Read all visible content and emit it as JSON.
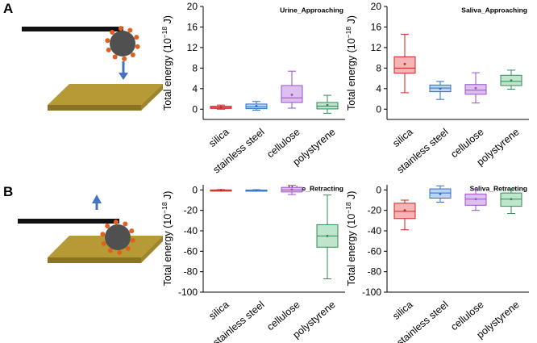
{
  "panel_labels": [
    "A",
    "B"
  ],
  "ylabel_main": "Total energy (10",
  "ylabel_exp": "−18",
  "ylabel_unit": "J)",
  "categories": [
    "silica",
    "stainless steel",
    "cellulose",
    "polystyrene"
  ],
  "colors": {
    "silica": {
      "stroke": "#cc2222",
      "fill": "#f5b5b5"
    },
    "stainless steel": {
      "stroke": "#2f6fc9",
      "fill": "#bcd4f2"
    },
    "cellulose": {
      "stroke": "#9b4fc9",
      "fill": "#dcc0f0"
    },
    "polystyrene": {
      "stroke": "#2e8b57",
      "fill": "#bfe6cc"
    },
    "cantilever": "#111111",
    "particle": "#505050",
    "bacteria": "#e06020",
    "substrate": "#b59a36",
    "arrow": "#4472c4"
  },
  "chart_data": [
    {
      "type": "box",
      "title": "Urine_Approaching",
      "ylabel": "Total energy (10−18 J)",
      "ylim": [
        -2,
        20
      ],
      "yticks": [
        0,
        4,
        8,
        12,
        16,
        20
      ],
      "categories": [
        "silica",
        "stainless steel",
        "cellulose",
        "polystyrene"
      ],
      "boxes": [
        {
          "min": 0.0,
          "q1": 0.15,
          "median": 0.35,
          "q3": 0.55,
          "max": 0.8,
          "mean": 0.4
        },
        {
          "min": -0.2,
          "q1": 0.1,
          "median": 0.45,
          "q3": 1.0,
          "max": 1.5,
          "mean": 0.6
        },
        {
          "min": 0.2,
          "q1": 1.3,
          "median": 2.2,
          "q3": 4.6,
          "max": 7.4,
          "mean": 2.8
        },
        {
          "min": -0.8,
          "q1": 0.05,
          "median": 0.6,
          "q3": 1.3,
          "max": 2.7,
          "mean": 0.8
        }
      ]
    },
    {
      "type": "box",
      "title": "Saliva_Approaching",
      "ylabel": "Total energy (10−18 J)",
      "ylim": [
        -2,
        20
      ],
      "yticks": [
        0,
        4,
        8,
        12,
        16,
        20
      ],
      "categories": [
        "silica",
        "stainless steel",
        "cellulose",
        "polystyrene"
      ],
      "boxes": [
        {
          "min": 3.2,
          "q1": 7.0,
          "median": 8.0,
          "q3": 10.2,
          "max": 14.6,
          "mean": 8.8
        },
        {
          "min": 1.9,
          "q1": 3.4,
          "median": 4.1,
          "q3": 4.7,
          "max": 5.4,
          "mean": 4.0
        },
        {
          "min": 1.2,
          "q1": 2.9,
          "median": 3.7,
          "q3": 4.8,
          "max": 7.1,
          "mean": 4.1
        },
        {
          "min": 3.9,
          "q1": 4.6,
          "median": 5.4,
          "q3": 6.6,
          "max": 7.6,
          "mean": 5.6
        }
      ]
    },
    {
      "type": "box",
      "title": "Urine_Retracting",
      "ylabel": "Total energy (10−18 J)",
      "ylim": [
        -100,
        5
      ],
      "yticks": [
        0,
        -20,
        -40,
        -60,
        -80,
        -100
      ],
      "categories": [
        "silica",
        "stainless steel",
        "cellulose",
        "polystyrene"
      ],
      "boxes": [
        {
          "min": -0.8,
          "q1": -0.4,
          "median": -0.2,
          "q3": 0.0,
          "max": 0.3,
          "mean": -0.2
        },
        {
          "min": -0.9,
          "q1": -0.5,
          "median": -0.3,
          "q3": -0.1,
          "max": 0.2,
          "mean": -0.3
        },
        {
          "min": -4.5,
          "q1": -2.0,
          "median": 0.0,
          "q3": 2.5,
          "max": 4.5,
          "mean": 0.3
        },
        {
          "min": -87,
          "q1": -56,
          "median": -45,
          "q3": -34,
          "max": -5,
          "mean": -45
        }
      ]
    },
    {
      "type": "box",
      "title": "Saliva_Retracting",
      "ylabel": "Total energy (10−18 J)",
      "ylim": [
        -100,
        5
      ],
      "yticks": [
        0,
        -20,
        -40,
        -60,
        -80,
        -100
      ],
      "categories": [
        "silica",
        "stainless steel",
        "cellulose",
        "polystyrene"
      ],
      "boxes": [
        {
          "min": -39,
          "q1": -28,
          "median": -21,
          "q3": -13,
          "max": -10,
          "mean": -20
        },
        {
          "min": -12,
          "q1": -8,
          "median": -3,
          "q3": 1,
          "max": 4,
          "mean": -4
        },
        {
          "min": -20,
          "q1": -15,
          "median": -9,
          "q3": -4,
          "max": 1,
          "mean": -9
        },
        {
          "min": -23,
          "q1": -16,
          "median": -9,
          "q3": -3,
          "max": 1,
          "mean": -9
        }
      ]
    }
  ]
}
